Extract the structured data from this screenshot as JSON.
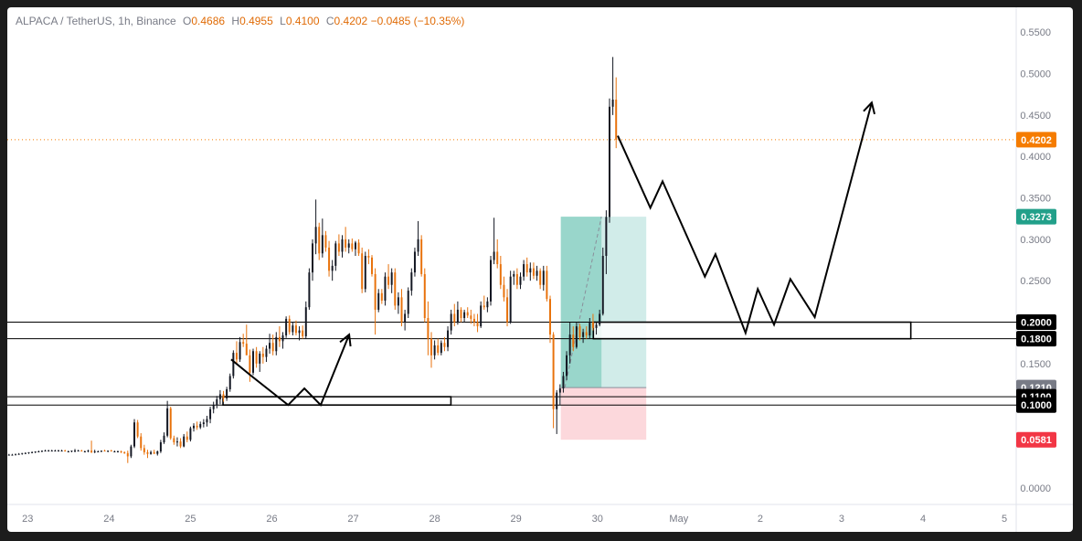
{
  "header": {
    "symbol": "ALPACA / TetherUS, 1h, Binance",
    "o_key": "O",
    "o_val": "0.4686",
    "h_key": "H",
    "h_val": "0.4955",
    "l_key": "L",
    "l_val": "0.4100",
    "c_key": "C",
    "c_val": "0.4202",
    "change": "−0.0485 (−10.35%)"
  },
  "colors": {
    "up": "#131722",
    "down": "#e8720c",
    "last_price": "#f57c00",
    "target": "#22a08a",
    "stop": "#f23645",
    "profit_zone": "#b2dfdb",
    "loss_zone": "#fcd4d8",
    "entry_label": "#787b86",
    "level_label": "#000000"
  },
  "chart_data": {
    "type": "candlestick",
    "title": "ALPACA / TetherUS, 1h, Binance",
    "x_axis": {
      "tick_labels": [
        "23",
        "24",
        "25",
        "26",
        "27",
        "28",
        "29",
        "30",
        "May",
        "2",
        "3",
        "4",
        "5"
      ],
      "range_days": [
        22.75,
        35.1
      ]
    },
    "y_axis": {
      "tick_labels": [
        "0.5500",
        "0.5000",
        "0.4500",
        "0.4000",
        "0.3500",
        "0.3000",
        "0.2500",
        "0.1500",
        "0.0000"
      ],
      "ticks": [
        0.55,
        0.5,
        0.45,
        0.4,
        0.35,
        0.3,
        0.25,
        0.15,
        0.0
      ],
      "range": [
        -0.02,
        0.58
      ],
      "scale": "linear",
      "position": "right"
    },
    "price_labels": [
      {
        "text": "0.4202",
        "value": 0.4202,
        "role": "last_price"
      },
      {
        "text": "0.3273",
        "value": 0.3273,
        "role": "target"
      },
      {
        "text": "0.2000",
        "value": 0.2,
        "role": "level"
      },
      {
        "text": "0.1800",
        "value": 0.18,
        "role": "level"
      },
      {
        "text": "0.1210",
        "value": 0.121,
        "role": "entry"
      },
      {
        "text": "0.1100",
        "value": 0.11,
        "role": "level"
      },
      {
        "text": "0.1000",
        "value": 0.1,
        "role": "level"
      },
      {
        "text": "0.0581",
        "value": 0.0581,
        "role": "stop"
      }
    ],
    "horizontal_levels": [
      0.2,
      0.18,
      0.11,
      0.1
    ],
    "last_price": 0.4202,
    "position": {
      "x_start": 29.55,
      "x_end": 30.6,
      "entry": 0.121,
      "target": 0.3273,
      "stop": 0.0581,
      "split_x": 30.05
    },
    "boxes": [
      {
        "x_start": 25.4,
        "x_end": 28.2,
        "low": 0.1,
        "high": 0.11
      },
      {
        "x_start": 29.95,
        "x_end": 33.85,
        "low": 0.18,
        "high": 0.2
      }
    ],
    "projection_paths": [
      [
        [
          25.5,
          0.155
        ],
        [
          25.75,
          0.135
        ],
        [
          26.2,
          0.1
        ],
        [
          26.4,
          0.12
        ],
        [
          26.6,
          0.1
        ],
        [
          26.95,
          0.185
        ]
      ],
      [
        [
          30.25,
          0.425
        ],
        [
          30.65,
          0.338
        ],
        [
          30.8,
          0.37
        ],
        [
          31.32,
          0.255
        ],
        [
          31.45,
          0.282
        ],
        [
          31.82,
          0.187
        ],
        [
          31.97,
          0.24
        ],
        [
          32.17,
          0.197
        ],
        [
          32.37,
          0.252
        ],
        [
          32.67,
          0.206
        ],
        [
          33.37,
          0.465
        ]
      ]
    ],
    "candles_ohlc": [
      [
        0.04,
        0.041,
        0.039,
        0.04
      ],
      [
        0.04,
        0.041,
        0.039,
        0.04
      ],
      [
        0.04,
        0.041,
        0.039,
        0.041
      ],
      [
        0.041,
        0.042,
        0.04,
        0.041
      ],
      [
        0.041,
        0.042,
        0.04,
        0.042
      ],
      [
        0.042,
        0.043,
        0.041,
        0.042
      ],
      [
        0.042,
        0.043,
        0.041,
        0.043
      ],
      [
        0.043,
        0.044,
        0.042,
        0.043
      ],
      [
        0.043,
        0.044,
        0.042,
        0.044
      ],
      [
        0.044,
        0.045,
        0.043,
        0.044
      ],
      [
        0.044,
        0.045,
        0.043,
        0.045
      ],
      [
        0.045,
        0.046,
        0.044,
        0.045
      ],
      [
        0.045,
        0.046,
        0.044,
        0.045
      ],
      [
        0.045,
        0.046,
        0.044,
        0.045
      ],
      [
        0.045,
        0.046,
        0.044,
        0.045
      ],
      [
        0.045,
        0.046,
        0.044,
        0.045
      ],
      [
        0.045,
        0.046,
        0.044,
        0.045
      ],
      [
        0.045,
        0.046,
        0.044,
        0.044
      ],
      [
        0.044,
        0.045,
        0.043,
        0.044
      ],
      [
        0.044,
        0.045,
        0.043,
        0.045
      ],
      [
        0.045,
        0.047,
        0.043,
        0.045
      ],
      [
        0.045,
        0.046,
        0.044,
        0.045
      ],
      [
        0.045,
        0.046,
        0.044,
        0.044
      ],
      [
        0.044,
        0.045,
        0.043,
        0.044
      ],
      [
        0.044,
        0.046,
        0.043,
        0.045
      ],
      [
        0.045,
        0.057,
        0.042,
        0.043
      ],
      [
        0.043,
        0.046,
        0.042,
        0.044
      ],
      [
        0.044,
        0.045,
        0.043,
        0.044
      ],
      [
        0.044,
        0.045,
        0.043,
        0.045
      ],
      [
        0.045,
        0.046,
        0.044,
        0.044
      ],
      [
        0.044,
        0.045,
        0.043,
        0.045
      ],
      [
        0.045,
        0.046,
        0.044,
        0.044
      ],
      [
        0.044,
        0.045,
        0.043,
        0.044
      ],
      [
        0.044,
        0.045,
        0.043,
        0.044
      ],
      [
        0.044,
        0.045,
        0.042,
        0.043
      ],
      [
        0.043,
        0.044,
        0.041,
        0.042
      ],
      [
        0.042,
        0.045,
        0.03,
        0.038
      ],
      [
        0.038,
        0.052,
        0.036,
        0.05
      ],
      [
        0.05,
        0.083,
        0.048,
        0.079
      ],
      [
        0.079,
        0.082,
        0.06,
        0.062
      ],
      [
        0.062,
        0.066,
        0.045,
        0.048
      ],
      [
        0.048,
        0.052,
        0.04,
        0.043
      ],
      [
        0.043,
        0.046,
        0.036,
        0.041
      ],
      [
        0.041,
        0.045,
        0.04,
        0.043
      ],
      [
        0.043,
        0.046,
        0.042,
        0.041
      ],
      [
        0.041,
        0.045,
        0.039,
        0.044
      ],
      [
        0.044,
        0.058,
        0.042,
        0.055
      ],
      [
        0.055,
        0.067,
        0.053,
        0.063
      ],
      [
        0.063,
        0.105,
        0.061,
        0.096
      ],
      [
        0.096,
        0.098,
        0.058,
        0.06
      ],
      [
        0.06,
        0.063,
        0.052,
        0.055
      ],
      [
        0.055,
        0.061,
        0.05,
        0.056
      ],
      [
        0.056,
        0.06,
        0.048,
        0.05
      ],
      [
        0.05,
        0.065,
        0.049,
        0.062
      ],
      [
        0.062,
        0.068,
        0.055,
        0.058
      ],
      [
        0.058,
        0.074,
        0.056,
        0.072
      ],
      [
        0.072,
        0.078,
        0.068,
        0.075
      ],
      [
        0.075,
        0.08,
        0.07,
        0.073
      ],
      [
        0.073,
        0.08,
        0.071,
        0.077
      ],
      [
        0.077,
        0.083,
        0.073,
        0.079
      ],
      [
        0.079,
        0.087,
        0.074,
        0.083
      ],
      [
        0.083,
        0.098,
        0.078,
        0.095
      ],
      [
        0.095,
        0.104,
        0.09,
        0.1
      ],
      [
        0.1,
        0.111,
        0.096,
        0.107
      ],
      [
        0.107,
        0.118,
        0.101,
        0.113
      ],
      [
        0.113,
        0.117,
        0.104,
        0.108
      ],
      [
        0.108,
        0.122,
        0.105,
        0.119
      ],
      [
        0.119,
        0.138,
        0.116,
        0.135
      ],
      [
        0.135,
        0.166,
        0.132,
        0.163
      ],
      [
        0.163,
        0.177,
        0.15,
        0.155
      ],
      [
        0.155,
        0.182,
        0.152,
        0.176
      ],
      [
        0.176,
        0.186,
        0.17,
        0.174
      ],
      [
        0.174,
        0.197,
        0.169,
        0.16
      ],
      [
        0.16,
        0.167,
        0.128,
        0.139
      ],
      [
        0.139,
        0.168,
        0.136,
        0.165
      ],
      [
        0.165,
        0.17,
        0.145,
        0.15
      ],
      [
        0.15,
        0.165,
        0.14,
        0.162
      ],
      [
        0.162,
        0.17,
        0.15,
        0.158
      ],
      [
        0.158,
        0.172,
        0.152,
        0.168
      ],
      [
        0.168,
        0.186,
        0.162,
        0.175
      ],
      [
        0.175,
        0.185,
        0.16,
        0.165
      ],
      [
        0.165,
        0.188,
        0.16,
        0.182
      ],
      [
        0.182,
        0.195,
        0.17,
        0.177
      ],
      [
        0.177,
        0.188,
        0.168,
        0.184
      ],
      [
        0.184,
        0.207,
        0.181,
        0.204
      ],
      [
        0.204,
        0.208,
        0.185,
        0.188
      ],
      [
        0.188,
        0.2,
        0.184,
        0.196
      ],
      [
        0.196,
        0.202,
        0.184,
        0.187
      ],
      [
        0.187,
        0.195,
        0.178,
        0.19
      ],
      [
        0.19,
        0.196,
        0.18,
        0.183
      ],
      [
        0.183,
        0.225,
        0.18,
        0.218
      ],
      [
        0.218,
        0.265,
        0.215,
        0.26
      ],
      [
        0.26,
        0.3,
        0.25,
        0.295
      ],
      [
        0.295,
        0.348,
        0.282,
        0.315
      ],
      [
        0.315,
        0.32,
        0.275,
        0.283
      ],
      [
        0.283,
        0.325,
        0.278,
        0.305
      ],
      [
        0.305,
        0.31,
        0.285,
        0.29
      ],
      [
        0.29,
        0.298,
        0.255,
        0.262
      ],
      [
        0.262,
        0.275,
        0.25,
        0.268
      ],
      [
        0.268,
        0.298,
        0.262,
        0.295
      ],
      [
        0.295,
        0.306,
        0.28,
        0.285
      ],
      [
        0.285,
        0.305,
        0.278,
        0.3
      ],
      [
        0.3,
        0.315,
        0.285,
        0.29
      ],
      [
        0.29,
        0.3,
        0.283,
        0.295
      ],
      [
        0.295,
        0.301,
        0.285,
        0.288
      ],
      [
        0.288,
        0.298,
        0.28,
        0.296
      ],
      [
        0.296,
        0.3,
        0.28,
        0.283
      ],
      [
        0.283,
        0.29,
        0.235,
        0.24
      ],
      [
        0.24,
        0.285,
        0.236,
        0.28
      ],
      [
        0.28,
        0.288,
        0.27,
        0.278
      ],
      [
        0.278,
        0.281,
        0.255,
        0.258
      ],
      [
        0.258,
        0.265,
        0.185,
        0.215
      ],
      [
        0.215,
        0.24,
        0.212,
        0.235
      ],
      [
        0.235,
        0.24,
        0.222,
        0.226
      ],
      [
        0.226,
        0.26,
        0.22,
        0.255
      ],
      [
        0.255,
        0.27,
        0.24,
        0.245
      ],
      [
        0.245,
        0.265,
        0.235,
        0.26
      ],
      [
        0.26,
        0.265,
        0.215,
        0.22
      ],
      [
        0.22,
        0.236,
        0.21,
        0.23
      ],
      [
        0.23,
        0.24,
        0.195,
        0.2
      ],
      [
        0.2,
        0.215,
        0.19,
        0.21
      ],
      [
        0.21,
        0.242,
        0.205,
        0.238
      ],
      [
        0.238,
        0.265,
        0.232,
        0.26
      ],
      [
        0.26,
        0.29,
        0.255,
        0.285
      ],
      [
        0.285,
        0.322,
        0.28,
        0.3
      ],
      [
        0.3,
        0.305,
        0.255,
        0.258
      ],
      [
        0.258,
        0.265,
        0.2,
        0.205
      ],
      [
        0.205,
        0.225,
        0.16,
        0.18
      ],
      [
        0.18,
        0.188,
        0.145,
        0.16
      ],
      [
        0.16,
        0.178,
        0.155,
        0.172
      ],
      [
        0.172,
        0.18,
        0.16,
        0.163
      ],
      [
        0.163,
        0.178,
        0.16,
        0.175
      ],
      [
        0.175,
        0.182,
        0.165,
        0.17
      ],
      [
        0.17,
        0.195,
        0.165,
        0.19
      ],
      [
        0.19,
        0.215,
        0.185,
        0.21
      ],
      [
        0.21,
        0.222,
        0.195,
        0.2
      ],
      [
        0.2,
        0.225,
        0.197,
        0.215
      ],
      [
        0.215,
        0.218,
        0.2,
        0.205
      ],
      [
        0.205,
        0.215,
        0.2,
        0.212
      ],
      [
        0.212,
        0.218,
        0.205,
        0.208
      ],
      [
        0.208,
        0.215,
        0.198,
        0.204
      ],
      [
        0.204,
        0.21,
        0.195,
        0.2
      ],
      [
        0.2,
        0.21,
        0.188,
        0.195
      ],
      [
        0.195,
        0.225,
        0.193,
        0.22
      ],
      [
        0.22,
        0.232,
        0.215,
        0.218
      ],
      [
        0.218,
        0.23,
        0.212,
        0.225
      ],
      [
        0.225,
        0.28,
        0.22,
        0.275
      ],
      [
        0.275,
        0.326,
        0.27,
        0.285
      ],
      [
        0.285,
        0.3,
        0.265,
        0.27
      ],
      [
        0.27,
        0.28,
        0.24,
        0.245
      ],
      [
        0.245,
        0.255,
        0.225,
        0.23
      ],
      [
        0.23,
        0.24,
        0.195,
        0.2
      ],
      [
        0.2,
        0.262,
        0.198,
        0.255
      ],
      [
        0.255,
        0.262,
        0.245,
        0.258
      ],
      [
        0.258,
        0.265,
        0.24,
        0.245
      ],
      [
        0.245,
        0.26,
        0.24,
        0.255
      ],
      [
        0.255,
        0.275,
        0.25,
        0.27
      ],
      [
        0.27,
        0.278,
        0.255,
        0.26
      ],
      [
        0.26,
        0.272,
        0.25,
        0.265
      ],
      [
        0.265,
        0.272,
        0.252,
        0.256
      ],
      [
        0.256,
        0.268,
        0.25,
        0.262
      ],
      [
        0.262,
        0.265,
        0.24,
        0.245
      ],
      [
        0.245,
        0.268,
        0.238,
        0.262
      ],
      [
        0.262,
        0.268,
        0.225,
        0.228
      ],
      [
        0.228,
        0.232,
        0.175,
        0.185
      ],
      [
        0.185,
        0.188,
        0.072,
        0.095
      ],
      [
        0.095,
        0.118,
        0.065,
        0.115
      ],
      [
        0.115,
        0.125,
        0.1,
        0.12
      ],
      [
        0.12,
        0.14,
        0.115,
        0.135
      ],
      [
        0.135,
        0.165,
        0.13,
        0.16
      ],
      [
        0.16,
        0.2,
        0.15,
        0.185
      ],
      [
        0.185,
        0.195,
        0.165,
        0.17
      ],
      [
        0.17,
        0.2,
        0.168,
        0.195
      ],
      [
        0.195,
        0.198,
        0.178,
        0.182
      ],
      [
        0.182,
        0.192,
        0.175,
        0.188
      ],
      [
        0.188,
        0.195,
        0.18,
        0.184
      ],
      [
        0.184,
        0.205,
        0.18,
        0.2
      ],
      [
        0.2,
        0.21,
        0.19,
        0.193
      ],
      [
        0.193,
        0.2,
        0.185,
        0.197
      ],
      [
        0.197,
        0.215,
        0.195,
        0.21
      ],
      [
        0.21,
        0.29,
        0.208,
        0.28
      ],
      [
        0.28,
        0.335,
        0.258,
        0.327
      ],
      [
        0.327,
        0.47,
        0.32,
        0.46
      ],
      [
        0.46,
        0.52,
        0.45,
        0.4686
      ],
      [
        0.4686,
        0.4955,
        0.41,
        0.4202
      ]
    ]
  }
}
